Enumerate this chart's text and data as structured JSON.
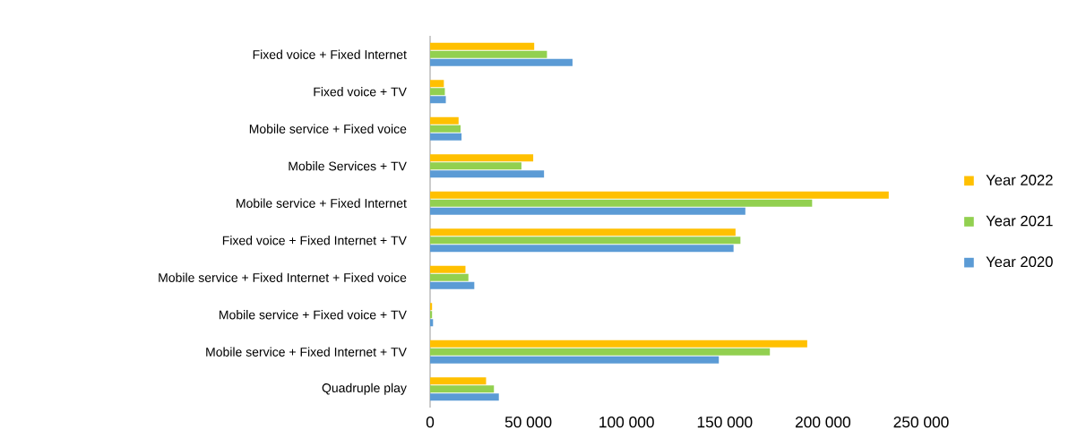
{
  "chart_data": {
    "type": "bar",
    "orientation": "horizontal",
    "categories": [
      "Fixed voice + Fixed Internet",
      "Fixed voice + TV",
      "Mobile service + Fixed voice",
      "Mobile Services + TV",
      "Mobile service + Fixed Internet",
      "Fixed voice + Fixed Internet + TV",
      "Mobile service + Fixed Internet + Fixed voice",
      "Mobile service + Fixed voice + TV",
      "Mobile service + Fixed Internet + TV",
      "Quadruple play"
    ],
    "series": [
      {
        "name": "Year 2022",
        "color": "#ffc000",
        "values": [
          53000,
          7000,
          14500,
          52500,
          233500,
          155500,
          18000,
          1000,
          192000,
          28500
        ]
      },
      {
        "name": "Year 2021",
        "color": "#92d050",
        "values": [
          59500,
          7500,
          15500,
          46500,
          194500,
          158000,
          19500,
          1000,
          173000,
          32500
        ]
      },
      {
        "name": "Year 2020",
        "color": "#5b9bd5",
        "values": [
          72500,
          8000,
          16000,
          58000,
          160500,
          154500,
          22500,
          1500,
          147000,
          35000
        ]
      }
    ],
    "xlim": [
      0,
      250000
    ],
    "xticks": [
      0,
      {
        "value": 50000,
        "label": "50 000"
      },
      {
        "value": 100000,
        "label": "100 000"
      },
      {
        "value": 150000,
        "label": "150 000"
      },
      {
        "value": 200000,
        "label": "200 000"
      },
      {
        "value": 250000,
        "label": "250 000"
      }
    ],
    "grid": false,
    "legend": "right",
    "marker": "square"
  }
}
